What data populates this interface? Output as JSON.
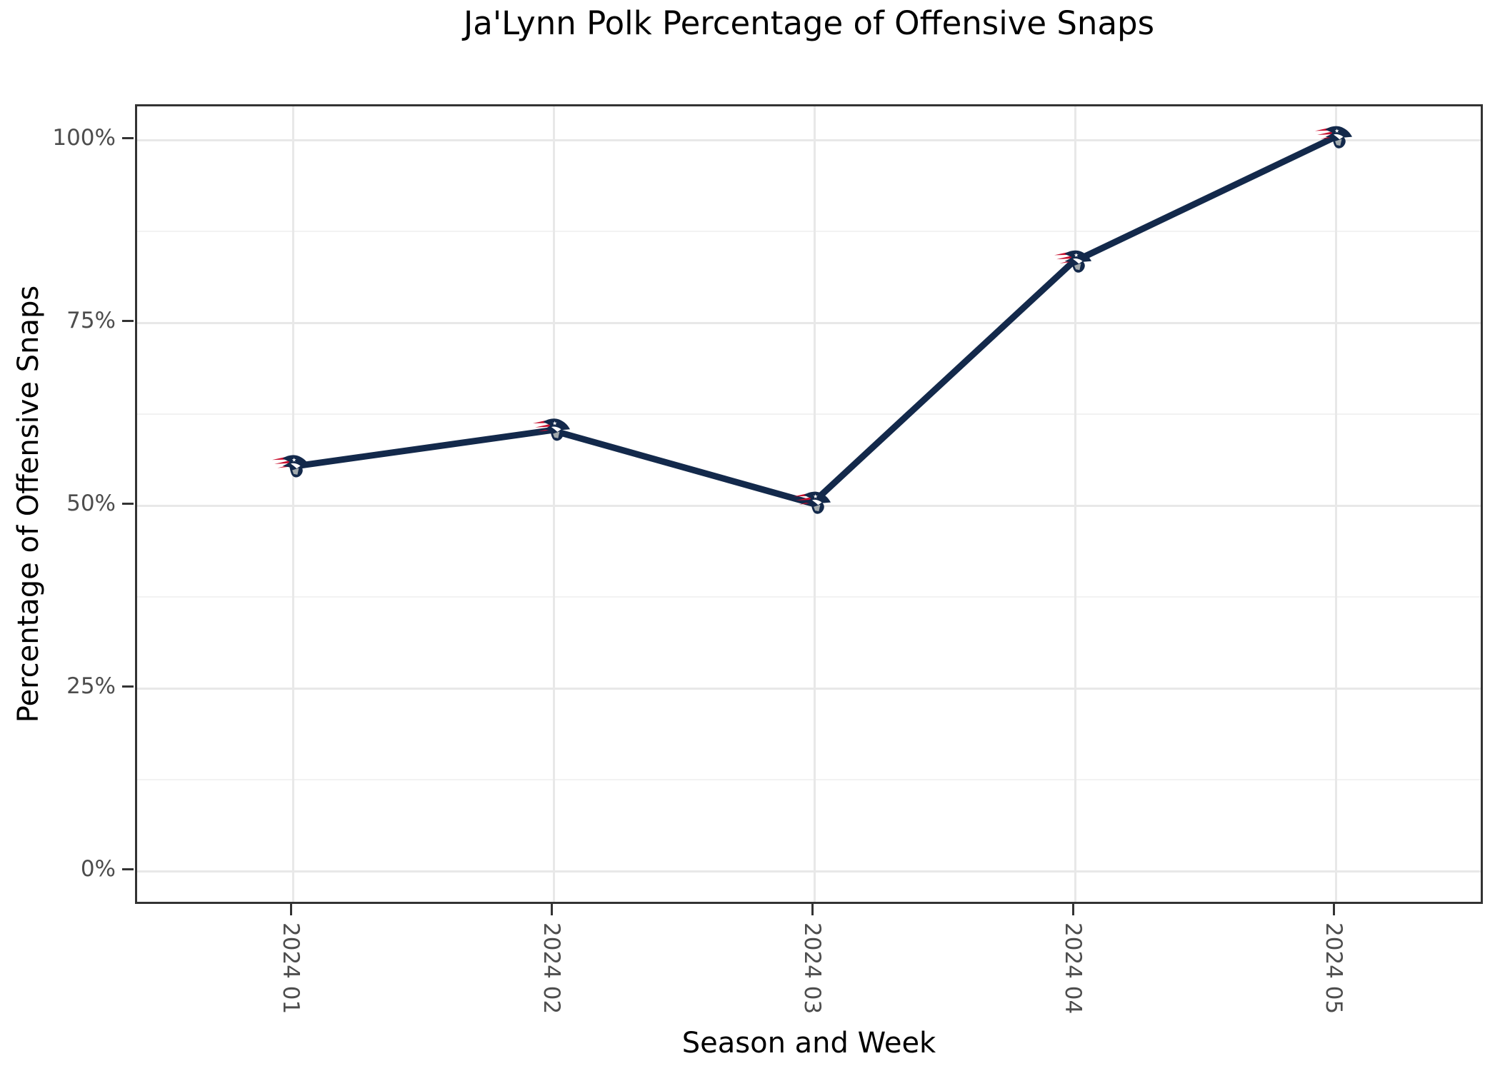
{
  "chart_data": {
    "type": "line",
    "title": "Ja'Lynn Polk Percentage of Offensive Snaps",
    "xlabel": "Season and Week",
    "ylabel": "Percentage of Offensive Snaps",
    "categories": [
      "2024 01",
      "2024 02",
      "2024 03",
      "2024 04",
      "2024 05"
    ],
    "values": [
      55,
      60,
      50,
      83,
      100
    ],
    "series_name": "Ja'Lynn Polk offensive snap percentage",
    "y_ticks": [
      0,
      25,
      50,
      75,
      100
    ],
    "y_tick_labels": [
      "0%",
      "25%",
      "50%",
      "75%",
      "100%"
    ],
    "ylim": [
      0,
      100
    ],
    "grid": "on",
    "legend": "none",
    "marker": "new-england-patriots-logo",
    "colors": {
      "line": "#13294B",
      "marker_navy": "#13294B",
      "marker_red": "#C8102E",
      "marker_silver": "#A2AAAD",
      "grid_major": "#e8e8e8",
      "grid_minor": "#f2f2f2",
      "panel_border": "#333333",
      "axis_text": "#4d4d4d",
      "title_text": "#000000"
    }
  }
}
